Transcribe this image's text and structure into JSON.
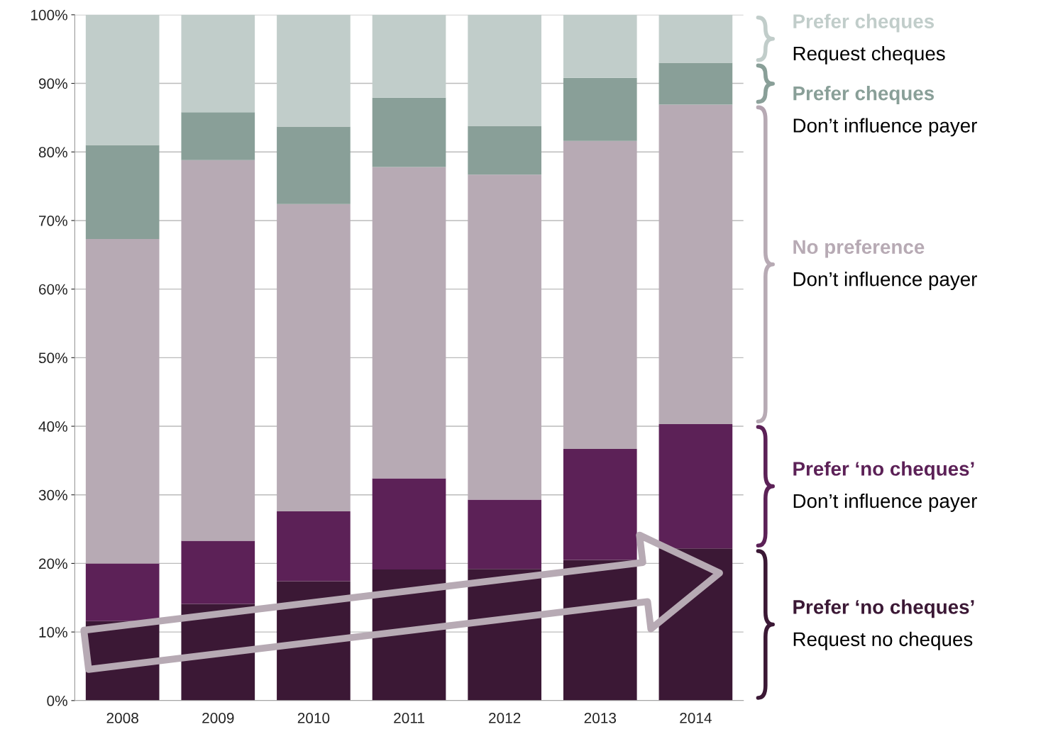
{
  "chart_data": {
    "type": "bar",
    "stacked": true,
    "categories": [
      "2008",
      "2009",
      "2010",
      "2011",
      "2012",
      "2013",
      "2014"
    ],
    "series": [
      {
        "name": "Prefer ‘no cheques’\nRequest no cheques",
        "color": "#3b1835",
        "values": [
          11.6,
          14.1,
          17.4,
          19.1,
          19.2,
          20.5,
          22.2
        ]
      },
      {
        "name": "Prefer ‘no cheques’\nDon’t influence payer",
        "color": "#5c2157",
        "values": [
          8.4,
          9.2,
          10.2,
          13.3,
          10.1,
          16.2,
          18.1
        ]
      },
      {
        "name": "No preference\nDon’t influence payer",
        "color": "#b7aab4",
        "values": [
          47.3,
          55.5,
          44.8,
          45.4,
          47.4,
          44.9,
          46.6
        ]
      },
      {
        "name": "Prefer cheques\nDon’t influence payer",
        "color": "#899f98",
        "values": [
          13.7,
          7.0,
          11.3,
          10.1,
          7.1,
          9.2,
          6.1
        ]
      },
      {
        "name": "Prefer cheques\nRequest cheques",
        "color": "#c1cdca",
        "values": [
          19.0,
          14.2,
          16.3,
          12.1,
          16.2,
          9.2,
          7.0
        ]
      }
    ],
    "ylim": [
      0,
      100
    ],
    "yticks": [
      {
        "value": 0,
        "label": "0%"
      },
      {
        "value": 10,
        "label": "10%"
      },
      {
        "value": 20,
        "label": "20%"
      },
      {
        "value": 30,
        "label": "30%"
      },
      {
        "value": 40,
        "label": "40%"
      },
      {
        "value": 50,
        "label": "50%"
      },
      {
        "value": 60,
        "label": "60%"
      },
      {
        "value": 70,
        "label": "70%"
      },
      {
        "value": 80,
        "label": "80%"
      },
      {
        "value": 90,
        "label": "90%"
      },
      {
        "value": 100,
        "label": "100%"
      }
    ],
    "grid": "y",
    "legend": "right"
  }
}
